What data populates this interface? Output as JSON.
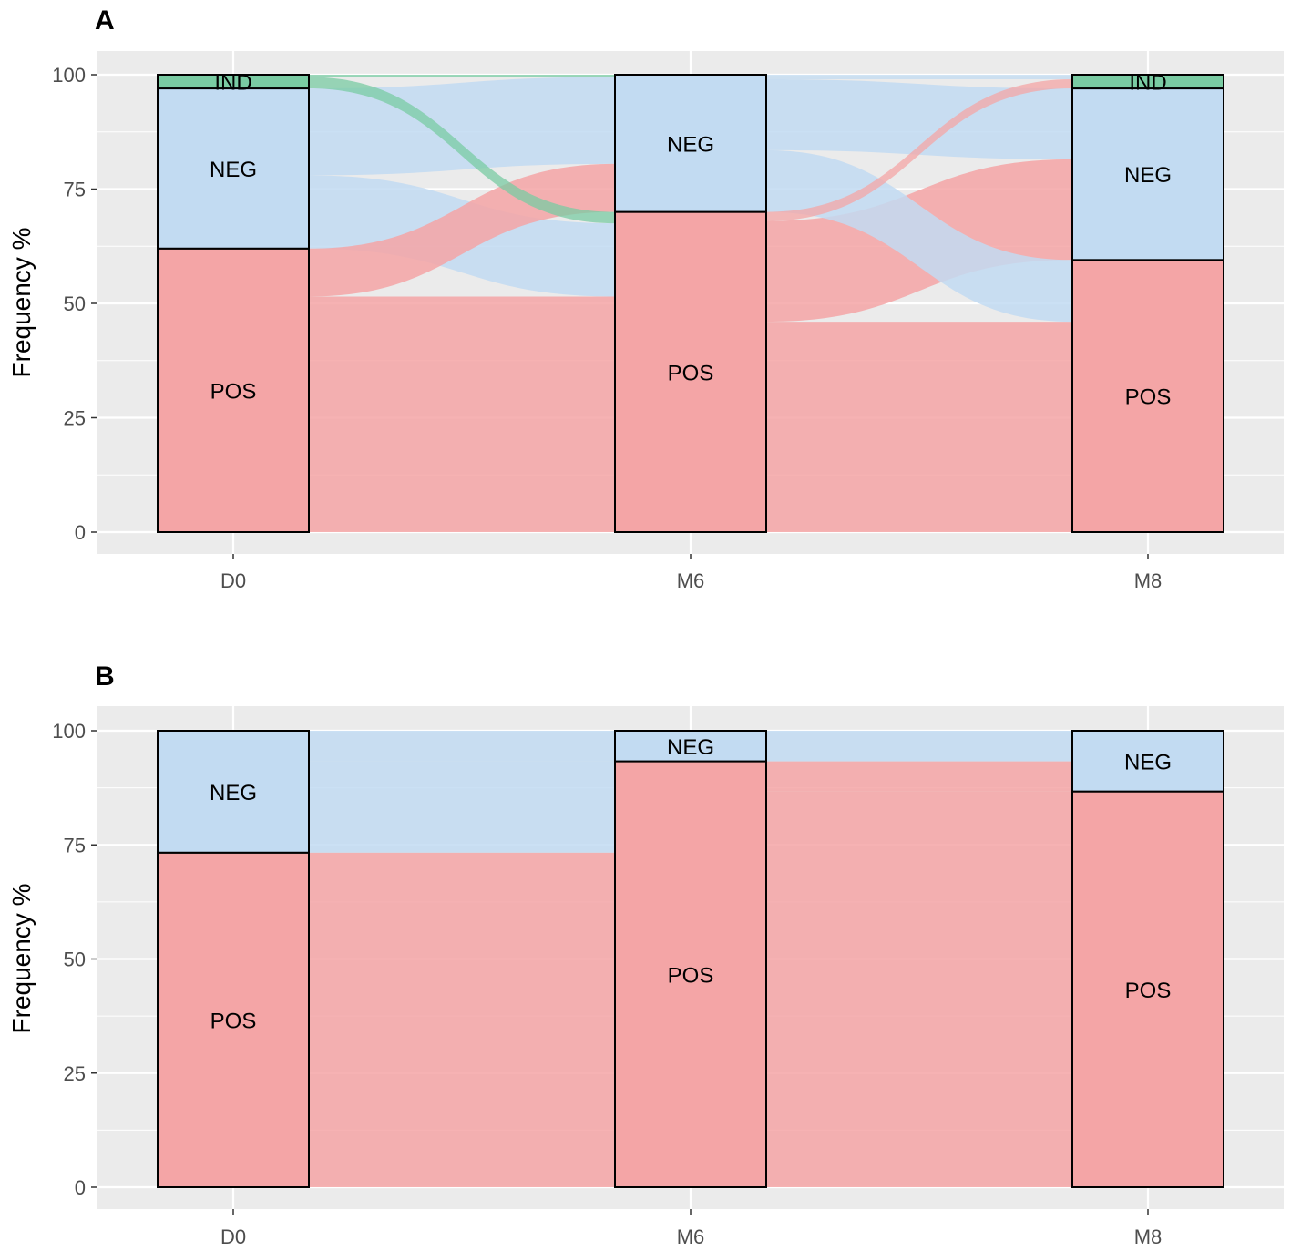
{
  "colors": {
    "POS": "#F4A5A6",
    "NEG": "#C2DBF2",
    "IND": "#7ACBA3",
    "panel_bg": "#EBEBEB",
    "grid": "#FFFFFF",
    "outline": "#000000"
  },
  "chart_data": [
    {
      "type": "alluvial",
      "panel": "A",
      "ylabel": "Frequency %",
      "xlabel": "",
      "ylim": [
        0,
        100
      ],
      "yticks": [
        0,
        25,
        50,
        75,
        100
      ],
      "categories": [
        "D0",
        "M6",
        "M8"
      ],
      "strata_order": [
        "POS",
        "NEG",
        "IND"
      ],
      "strata": {
        "D0": {
          "POS": 62,
          "NEG": 35,
          "IND": 3
        },
        "M6": {
          "POS": 70,
          "NEG": 30,
          "IND": 0
        },
        "M8": {
          "POS": 59.5,
          "NEG": 37.5,
          "IND": 3
        }
      },
      "flows": [
        {
          "from_time": "D0",
          "to_time": "M6",
          "from": "POS",
          "to": "POS",
          "value": 51.5
        },
        {
          "from_time": "D0",
          "to_time": "M6",
          "from": "POS",
          "to": "NEG",
          "value": 10.5
        },
        {
          "from_time": "D0",
          "to_time": "M6",
          "from": "NEG",
          "to": "POS",
          "value": 16
        },
        {
          "from_time": "D0",
          "to_time": "M6",
          "from": "NEG",
          "to": "NEG",
          "value": 19
        },
        {
          "from_time": "D0",
          "to_time": "M6",
          "from": "IND",
          "to": "POS",
          "value": 2.5
        },
        {
          "from_time": "D0",
          "to_time": "M6",
          "from": "IND",
          "to": "NEG",
          "value": 0.5
        },
        {
          "from_time": "M6",
          "to_time": "M8",
          "from": "POS",
          "to": "POS",
          "value": 46
        },
        {
          "from_time": "M6",
          "to_time": "M8",
          "from": "POS",
          "to": "NEG",
          "value": 22
        },
        {
          "from_time": "M6",
          "to_time": "M8",
          "from": "POS",
          "to": "IND",
          "value": 2
        },
        {
          "from_time": "M6",
          "to_time": "M8",
          "from": "NEG",
          "to": "POS",
          "value": 13.5
        },
        {
          "from_time": "M6",
          "to_time": "M8",
          "from": "NEG",
          "to": "NEG",
          "value": 15.5
        },
        {
          "from_time": "M6",
          "to_time": "M8",
          "from": "NEG",
          "to": "IND",
          "value": 1
        }
      ]
    },
    {
      "type": "alluvial",
      "panel": "B",
      "ylabel": "Frequency %",
      "xlabel": "",
      "ylim": [
        0,
        100
      ],
      "yticks": [
        0,
        25,
        50,
        75,
        100
      ],
      "categories": [
        "D0",
        "M6",
        "M8"
      ],
      "strata_order": [
        "POS",
        "NEG"
      ],
      "strata": {
        "D0": {
          "POS": 73.3,
          "NEG": 26.7
        },
        "M6": {
          "POS": 93.3,
          "NEG": 6.7
        },
        "M8": {
          "POS": 86.7,
          "NEG": 13.3
        }
      },
      "flows": [
        {
          "from_time": "D0",
          "to_time": "M6",
          "from": "POS",
          "to": "POS",
          "value": 73.3
        },
        {
          "from_time": "D0",
          "to_time": "M6",
          "from": "NEG",
          "to": "POS",
          "value": 20
        },
        {
          "from_time": "D0",
          "to_time": "M6",
          "from": "NEG",
          "to": "NEG",
          "value": 6.7
        },
        {
          "from_time": "M6",
          "to_time": "M8",
          "from": "POS",
          "to": "POS",
          "value": 86.7
        },
        {
          "from_time": "M6",
          "to_time": "M8",
          "from": "POS",
          "to": "NEG",
          "value": 6.6
        },
        {
          "from_time": "M6",
          "to_time": "M8",
          "from": "NEG",
          "to": "NEG",
          "value": 6.7
        }
      ]
    }
  ]
}
